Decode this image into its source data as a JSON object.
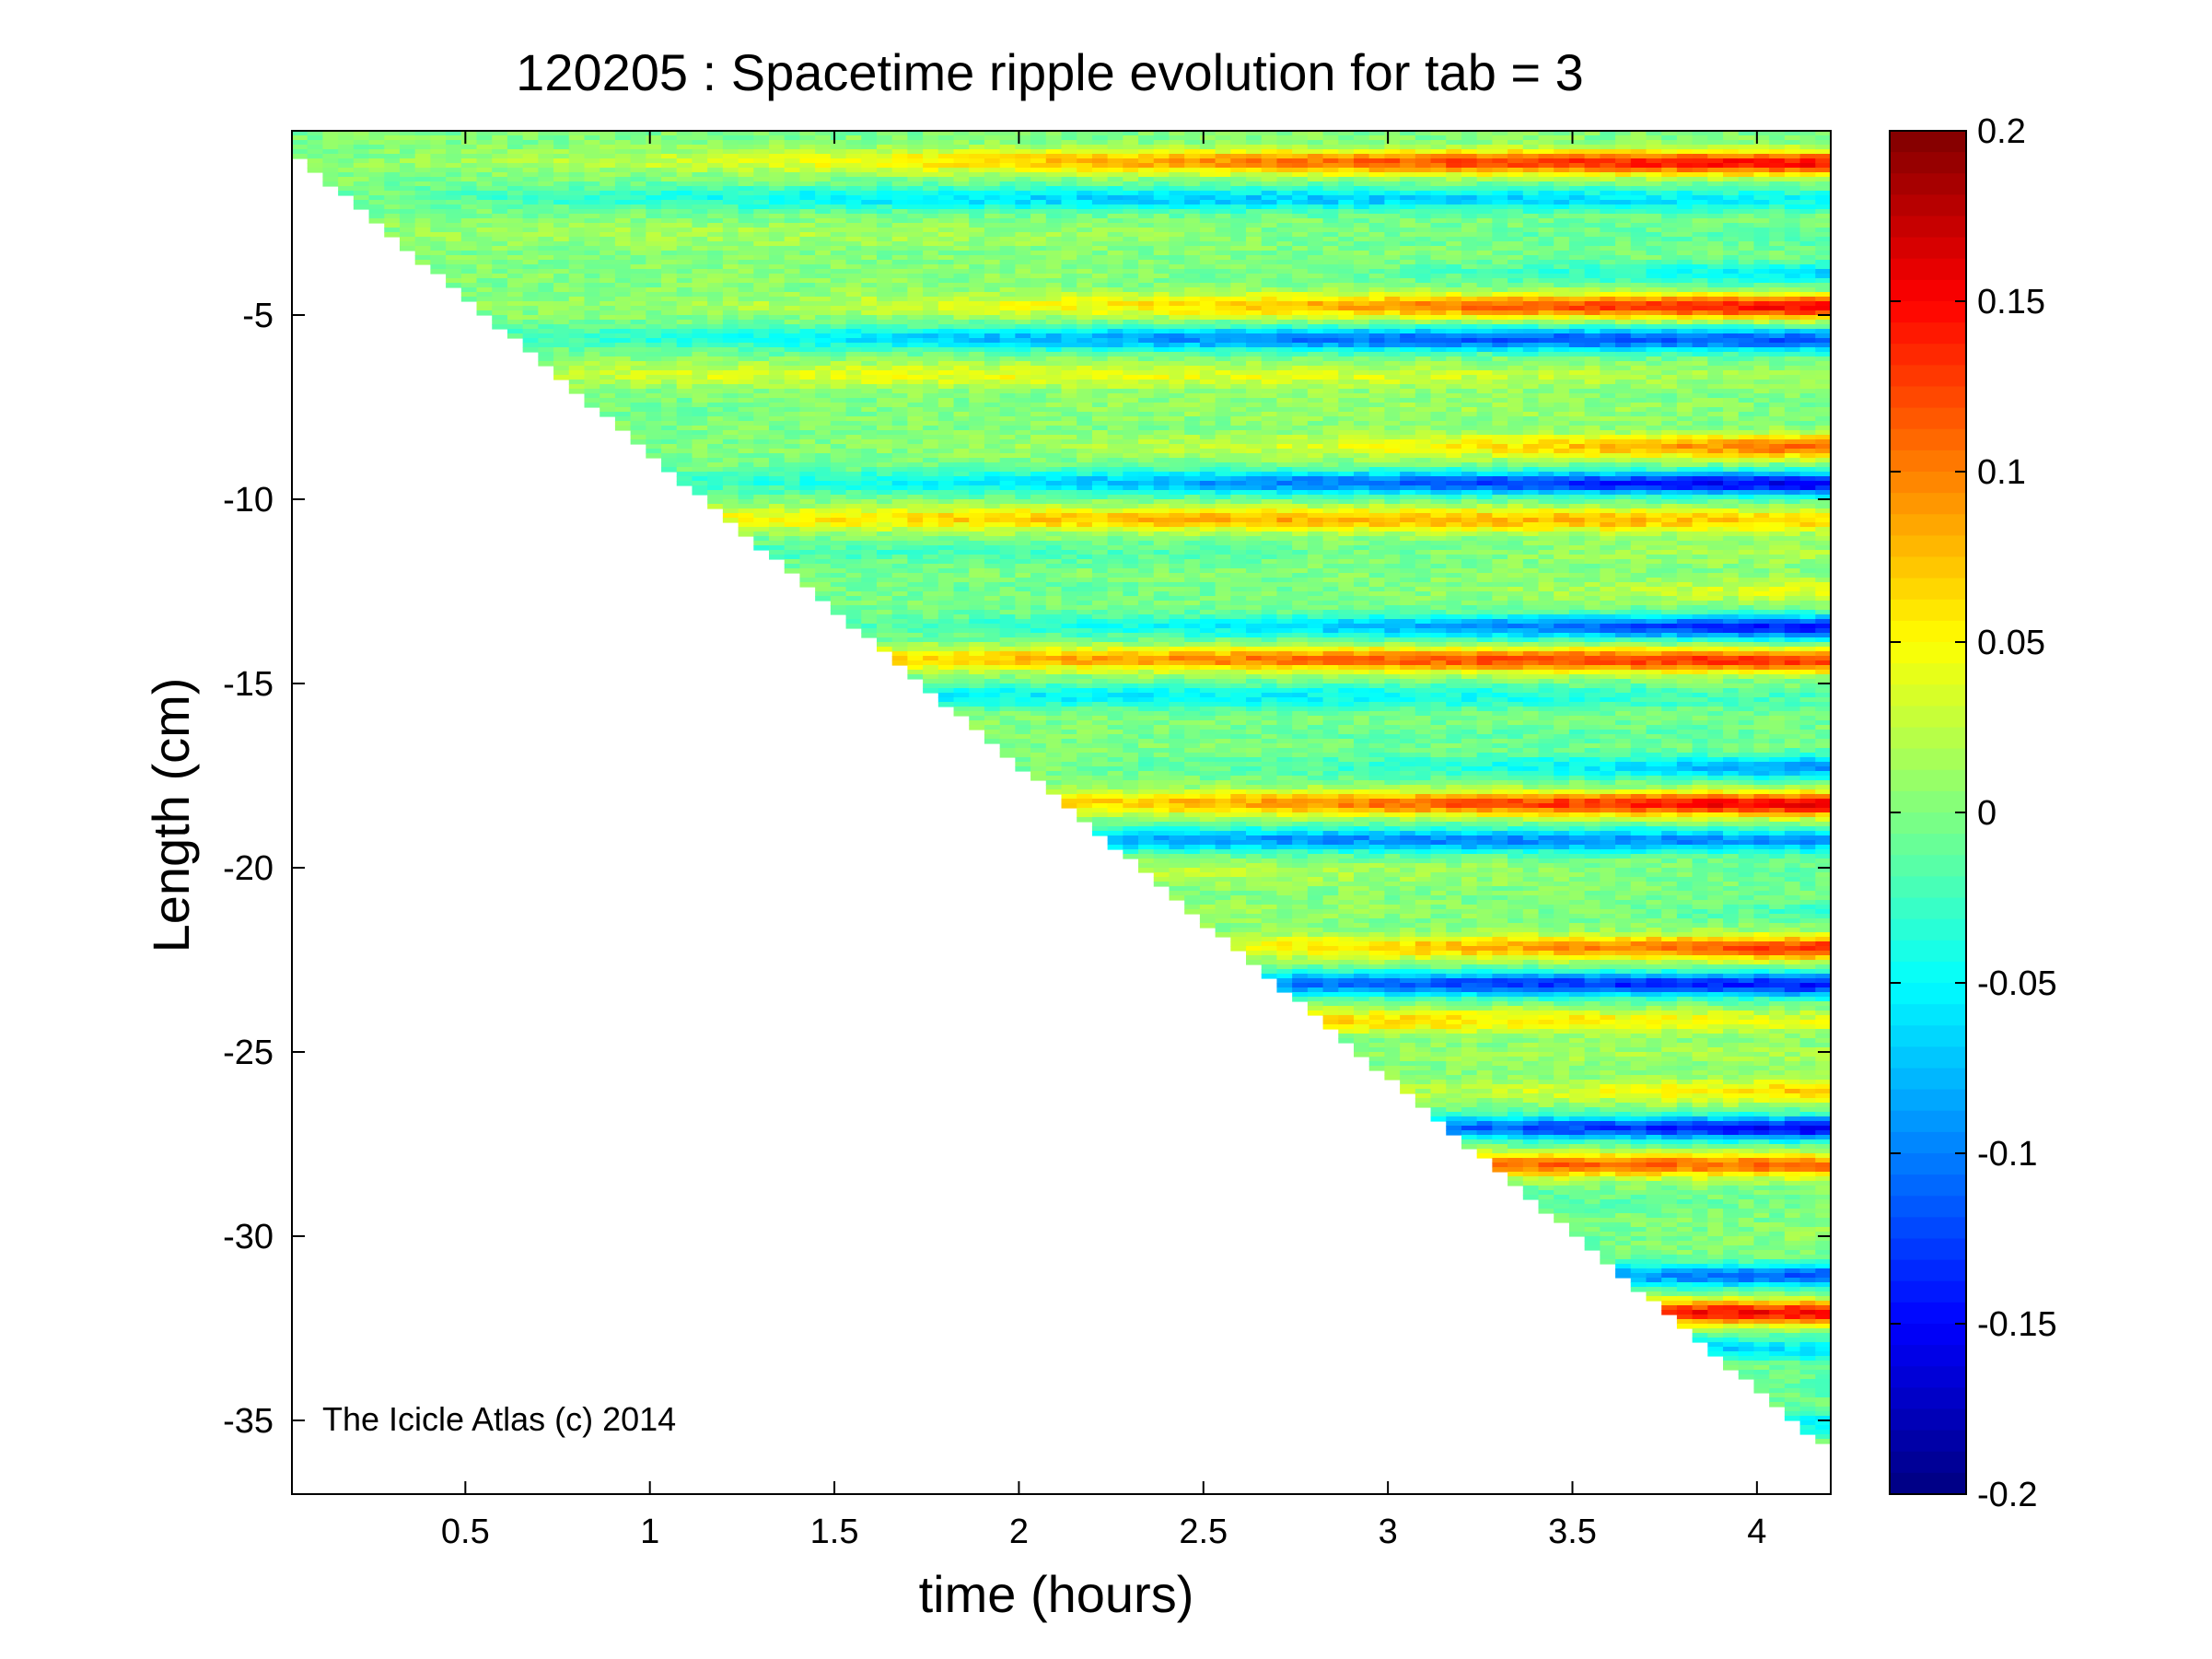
{
  "chart_data": [
    {
      "type": "heatmap",
      "title": "120205 : Spacetime ripple evolution for tab = 3",
      "xlabel": "time (hours)",
      "ylabel": "Length (cm)",
      "xlim": [
        0.03,
        4.2
      ],
      "ylim": [
        -37,
        0
      ],
      "xticks": [
        0.5,
        1,
        1.5,
        2,
        2.5,
        3,
        3.5,
        4
      ],
      "xtick_labels": [
        "0.5",
        "1",
        "1.5",
        "2",
        "2.5",
        "3",
        "3.5",
        "4"
      ],
      "yticks": [
        -5,
        -10,
        -15,
        -20,
        -25,
        -30,
        -35
      ],
      "ytick_labels": [
        "-5",
        "-10",
        "-15",
        "-20",
        "-25",
        "-30",
        "-35"
      ],
      "colormap": "jet",
      "clim": [
        -0.2,
        0.2
      ],
      "grid": false,
      "boundary": {
        "description": "data present only where length is above the growing icicle tip",
        "x": [
          0.03,
          4.2
        ],
        "y": [
          -0.5,
          -35.8
        ]
      },
      "ripple_bands_length_cm": [
        -0.8,
        -1.8,
        -2.8,
        -3.8,
        -4.7,
        -5.6,
        -6.6,
        -7.5,
        -8.5,
        -9.5,
        -10.5,
        -11.4,
        -12.4,
        -13.4,
        -14.3,
        -15.3,
        -16.3,
        -17.2,
        -18.2,
        -19.2,
        -20.1,
        -21.1,
        -22.1,
        -23.1,
        -24.1,
        -25.0,
        -26.0,
        -27.0,
        -28.0,
        -29.0,
        -30.0,
        -31.0,
        -32.0,
        -33.0,
        -34.0,
        -35.0
      ],
      "band_amplitude_range": [
        -0.19,
        0.19
      ],
      "annotation": "The Icicle Atlas (c) 2014"
    },
    {
      "type": "colorbar",
      "colormap": "jet",
      "ticks": [
        0.2,
        0.15,
        0.1,
        0.05,
        0,
        -0.05,
        -0.1,
        -0.15,
        -0.2
      ],
      "tick_labels": [
        "0.2",
        "0.15",
        "0.1",
        "0.05",
        "0",
        "-0.05",
        "-0.1",
        "-0.15",
        "-0.2"
      ]
    }
  ]
}
